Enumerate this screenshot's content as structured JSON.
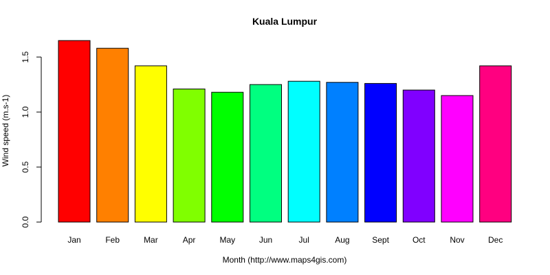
{
  "chart_data": {
    "type": "bar",
    "title": "Kuala Lumpur",
    "xlabel": "Month (http://www.maps4gis.com)",
    "ylabel": "Wind speed (m.s-1)",
    "ylim": [
      0,
      1.65
    ],
    "yticks": [
      0.0,
      0.5,
      1.0,
      1.5
    ],
    "ytick_labels": [
      "0.0",
      "0.5",
      "1.0",
      "1.5"
    ],
    "categories": [
      "Jan",
      "Feb",
      "Mar",
      "Apr",
      "May",
      "Jun",
      "Jul",
      "Aug",
      "Sept",
      "Oct",
      "Nov",
      "Dec"
    ],
    "values": [
      1.65,
      1.58,
      1.42,
      1.21,
      1.18,
      1.25,
      1.28,
      1.27,
      1.26,
      1.2,
      1.15,
      1.42
    ],
    "colors": [
      "#FF0000",
      "#FF8000",
      "#FFFF00",
      "#80FF00",
      "#00FF00",
      "#00FF80",
      "#00FFFF",
      "#0080FF",
      "#0000FF",
      "#8000FF",
      "#FF00FF",
      "#FF0080"
    ],
    "grid": false,
    "legend": "none"
  }
}
